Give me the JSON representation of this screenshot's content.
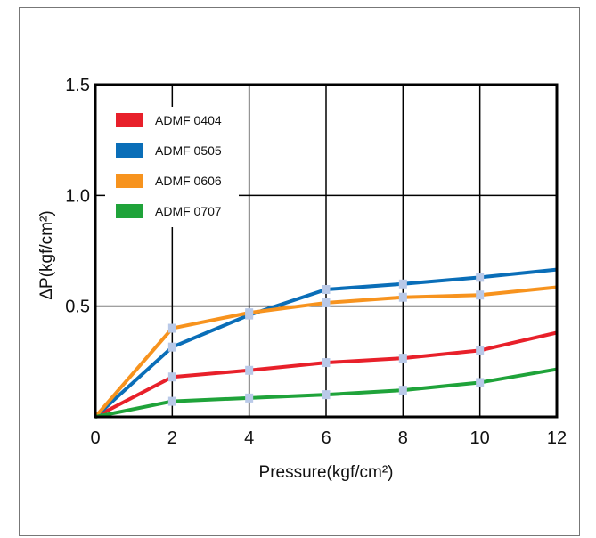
{
  "chart_data": {
    "type": "line",
    "title": "",
    "xlabel": "Pressure(kgf/cm²)",
    "ylabel": "ΔP(kgf/cm²)",
    "x_ticks": [
      "0",
      "2",
      "4",
      "6",
      "8",
      "10",
      "12"
    ],
    "y_ticks": [
      "0.5",
      "1.0",
      "1.5"
    ],
    "xlim": [
      0,
      12
    ],
    "ylim": [
      0,
      1.5
    ],
    "grid": true,
    "legend_position": "top-left",
    "x": [
      0,
      2,
      4,
      6,
      8,
      10,
      12
    ],
    "series": [
      {
        "name": "ADMF 0404",
        "color": "#e8202a",
        "values": [
          0,
          0.18,
          0.21,
          0.245,
          0.265,
          0.3,
          0.38
        ]
      },
      {
        "name": "ADMF 0505",
        "color": "#0a6eb8",
        "values": [
          0,
          0.315,
          0.46,
          0.575,
          0.6,
          0.63,
          0.665
        ]
      },
      {
        "name": "ADMF 0606",
        "color": "#f7931e",
        "values": [
          0,
          0.4,
          0.47,
          0.515,
          0.54,
          0.55,
          0.585
        ]
      },
      {
        "name": "ADMF 0707",
        "color": "#1fa33a",
        "values": [
          0,
          0.07,
          0.085,
          0.1,
          0.12,
          0.155,
          0.215
        ]
      }
    ],
    "marker_color": "#b9c9e8"
  }
}
